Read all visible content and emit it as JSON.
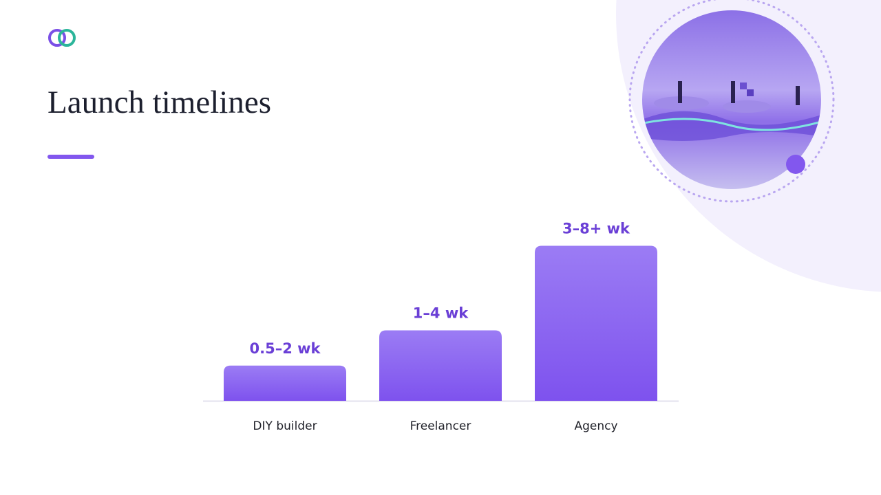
{
  "chart_data": {
    "type": "bar",
    "title": "Launch timelines",
    "categories": [
      "DIY builder",
      "Freelancer",
      "Agency"
    ],
    "values": [
      1.25,
      2.5,
      5.5
    ],
    "value_labels": [
      "0.5–2 wk",
      "1–4 wk",
      "3–8+ wk"
    ],
    "color": "#8257ee"
  }
}
